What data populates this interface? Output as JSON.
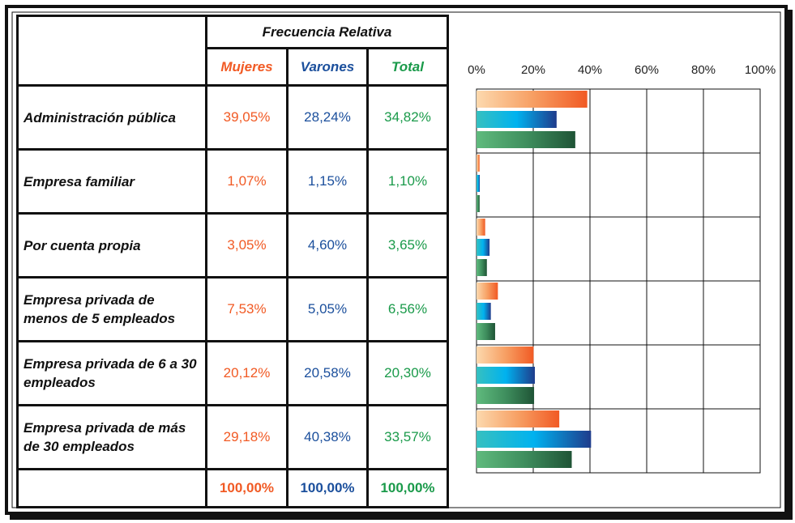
{
  "chart_data": {
    "type": "bar",
    "orientation": "horizontal",
    "group_header": "Frecuencia Relativa",
    "categories": [
      "Administración pública",
      "Empresa familiar",
      "Por cuenta propia",
      "Empresa privada de menos de 5 empleados",
      "Empresa privada de 6 a 30 empleados",
      "Empresa privada de más de 30 empleados"
    ],
    "series": [
      {
        "name": "Mujeres",
        "color": "#f15a24",
        "gradient": [
          "#fcd9ae",
          "#f7a064",
          "#f15a24"
        ],
        "values": [
          39.05,
          1.07,
          3.05,
          7.53,
          20.12,
          29.18
        ],
        "value_labels": [
          "39,05%",
          "1,07%",
          "3,05%",
          "7,53%",
          "20,12%",
          "29,18%"
        ],
        "total_label": "100,00%"
      },
      {
        "name": "Varones",
        "color": "#1b4f9c",
        "gradient": [
          "#36c0c0",
          "#00b2ef",
          "#1f3c8c"
        ],
        "values": [
          28.24,
          1.15,
          4.6,
          5.05,
          20.58,
          40.38
        ],
        "value_labels": [
          "28,24%",
          "1,15%",
          "4,60%",
          "5,05%",
          "20,58%",
          "40,38%"
        ],
        "total_label": "100,00%"
      },
      {
        "name": "Total",
        "color": "#1a9a4a",
        "gradient": [
          "#5fba7d",
          "#3f8f5e",
          "#1f5436"
        ],
        "values": [
          34.82,
          1.1,
          3.65,
          6.56,
          20.3,
          33.57
        ],
        "value_labels": [
          "34,82%",
          "1,10%",
          "3,65%",
          "6,56%",
          "20,30%",
          "33,57%"
        ],
        "total_label": "100,00%"
      }
    ],
    "xlim": [
      0,
      100
    ],
    "xticks": [
      {
        "value": 0,
        "label": "0%"
      },
      {
        "value": 20,
        "label": "20%"
      },
      {
        "value": 40,
        "label": "40%"
      },
      {
        "value": 60,
        "label": "60%"
      },
      {
        "value": 80,
        "label": "80%"
      },
      {
        "value": 100,
        "label": "100%"
      }
    ],
    "grid": true
  }
}
